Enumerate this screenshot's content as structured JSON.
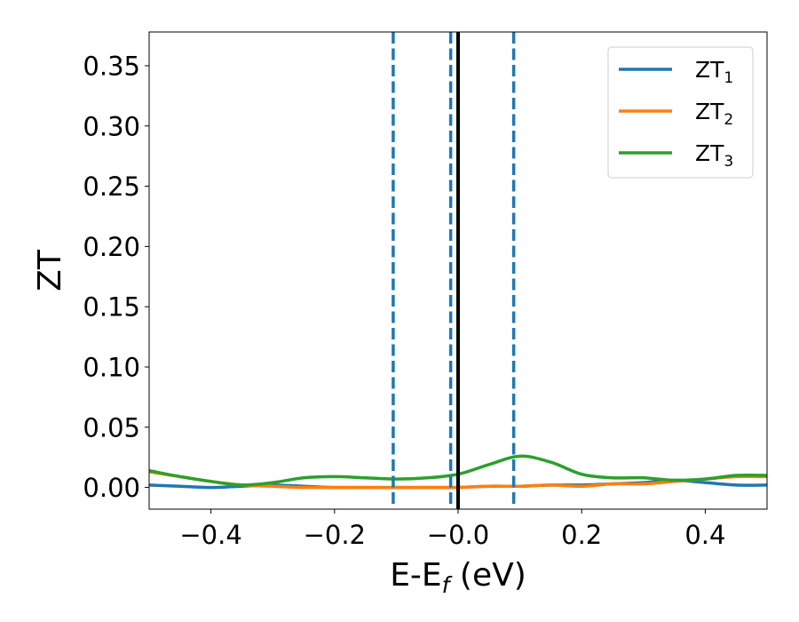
{
  "chart_data": {
    "type": "line",
    "xlabel": "E-E",
    "xlabel_subscript": "f",
    "xlabel_suffix": " (eV)",
    "ylabel": "ZT",
    "xlim": [
      -0.5,
      0.5
    ],
    "ylim": [
      -0.018,
      0.378
    ],
    "x_ticks": [
      -0.4,
      -0.2,
      0.0,
      0.2,
      0.4
    ],
    "x_tick_labels": [
      "−0.4",
      "−0.2",
      "−0.0",
      "0.2",
      "0.4"
    ],
    "y_ticks": [
      0.0,
      0.05,
      0.1,
      0.15,
      0.2,
      0.25,
      0.3,
      0.35
    ],
    "y_tick_labels": [
      "0.00",
      "0.05",
      "0.10",
      "0.15",
      "0.20",
      "0.25",
      "0.30",
      "0.35"
    ],
    "grid": false,
    "legend_position": "top-right",
    "series": [
      {
        "name": "ZT",
        "name_subscript": "1",
        "color": "#1f77b4",
        "x": [
          -0.5,
          -0.45,
          -0.4,
          -0.35,
          -0.3,
          -0.25,
          -0.2,
          -0.15,
          -0.1,
          -0.05,
          0.0,
          0.05,
          0.1,
          0.15,
          0.2,
          0.25,
          0.3,
          0.35,
          0.4,
          0.45,
          0.5
        ],
        "y": [
          0.002,
          0.001,
          0.0,
          0.001,
          0.002,
          0.001,
          0.0,
          0.0,
          0.0,
          0.0,
          0.0,
          0.001,
          0.001,
          0.002,
          0.002,
          0.003,
          0.004,
          0.006,
          0.004,
          0.002,
          0.002
        ]
      },
      {
        "name": "ZT",
        "name_subscript": "2",
        "color": "#ff7f0e",
        "x": [
          -0.5,
          -0.45,
          -0.4,
          -0.35,
          -0.3,
          -0.25,
          -0.2,
          -0.15,
          -0.1,
          -0.05,
          0.0,
          0.05,
          0.1,
          0.15,
          0.2,
          0.25,
          0.3,
          0.35,
          0.4,
          0.45,
          0.5
        ],
        "y": [
          0.013,
          0.009,
          0.005,
          0.002,
          0.001,
          0.0,
          0.0,
          0.0,
          0.0,
          0.0,
          0.0,
          0.001,
          0.001,
          0.002,
          0.001,
          0.003,
          0.003,
          0.005,
          0.007,
          0.009,
          0.009
        ]
      },
      {
        "name": "ZT",
        "name_subscript": "3",
        "color": "#2ca02c",
        "x": [
          -0.5,
          -0.45,
          -0.4,
          -0.35,
          -0.3,
          -0.25,
          -0.2,
          -0.15,
          -0.1,
          -0.05,
          0.0,
          0.05,
          0.1,
          0.15,
          0.2,
          0.25,
          0.3,
          0.35,
          0.4,
          0.45,
          0.5
        ],
        "y": [
          0.014,
          0.009,
          0.005,
          0.002,
          0.004,
          0.008,
          0.009,
          0.008,
          0.007,
          0.008,
          0.011,
          0.019,
          0.026,
          0.021,
          0.011,
          0.008,
          0.008,
          0.006,
          0.007,
          0.01,
          0.01
        ]
      }
    ],
    "vertical_lines": [
      {
        "x": -0.105,
        "style": "dashed",
        "color": "#1f77b4"
      },
      {
        "x": -0.012,
        "style": "dashed",
        "color": "#1f77b4"
      },
      {
        "x": 0.0,
        "style": "solid",
        "color": "#000000"
      },
      {
        "x": 0.09,
        "style": "dashed",
        "color": "#1f77b4"
      }
    ]
  }
}
